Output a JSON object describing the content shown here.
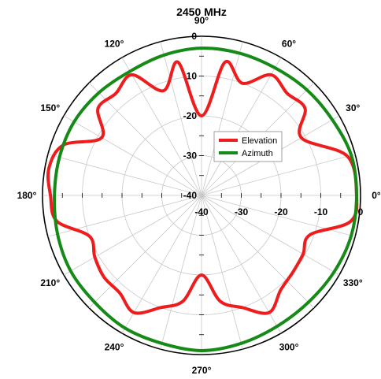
{
  "chart_data": {
    "type": "polar-line",
    "title": "2450 MHz",
    "radial_ticks": [
      "0",
      "-10",
      "-20",
      "-30",
      "-40"
    ],
    "rlim": [
      -40,
      0
    ],
    "angular_ticks": [
      "0°",
      "30°",
      "60°",
      "90°",
      "120°",
      "150°",
      "180°",
      "210°",
      "240°",
      "270°",
      "300°",
      "330°"
    ],
    "grid": true,
    "legend": "center",
    "colors": {
      "elevation": "#ee1c1c",
      "azimuth": "#168a16"
    },
    "series": [
      {
        "name": "Elevation",
        "theta": [
          0,
          15,
          30,
          40,
          50,
          60,
          70,
          80,
          90,
          100,
          110,
          120,
          130,
          140,
          150,
          160,
          170,
          180,
          190,
          200,
          210,
          220,
          230,
          240,
          250,
          260,
          270,
          280,
          290,
          300,
          310,
          320,
          330,
          340,
          350
        ],
        "values": [
          -1,
          -2,
          -11,
          -6,
          -6.5,
          -5,
          -10,
          -6,
          -20,
          -6,
          -12,
          -5,
          -6.5,
          -6,
          -11,
          -3,
          -1,
          -2,
          -3,
          -10,
          -9,
          -8,
          -8,
          -6,
          -10,
          -13,
          -20,
          -13,
          -10,
          -6,
          -9,
          -10,
          -10.5,
          -11,
          -2
        ]
      },
      {
        "name": "Azimuth",
        "theta": [
          0,
          15,
          30,
          45,
          60,
          75,
          90,
          105,
          120,
          135,
          150,
          165,
          180,
          195,
          210,
          225,
          240,
          255,
          270,
          285,
          300,
          315,
          330,
          345
        ],
        "values": [
          -1,
          -1,
          -2,
          -2.5,
          -3,
          -3,
          -3,
          -3.5,
          -4,
          -3.5,
          -3,
          -3,
          -3,
          -2.5,
          -2,
          -2,
          -1.5,
          -1.5,
          -1,
          -1.5,
          -2,
          -2,
          -1.5,
          -1
        ]
      }
    ]
  }
}
